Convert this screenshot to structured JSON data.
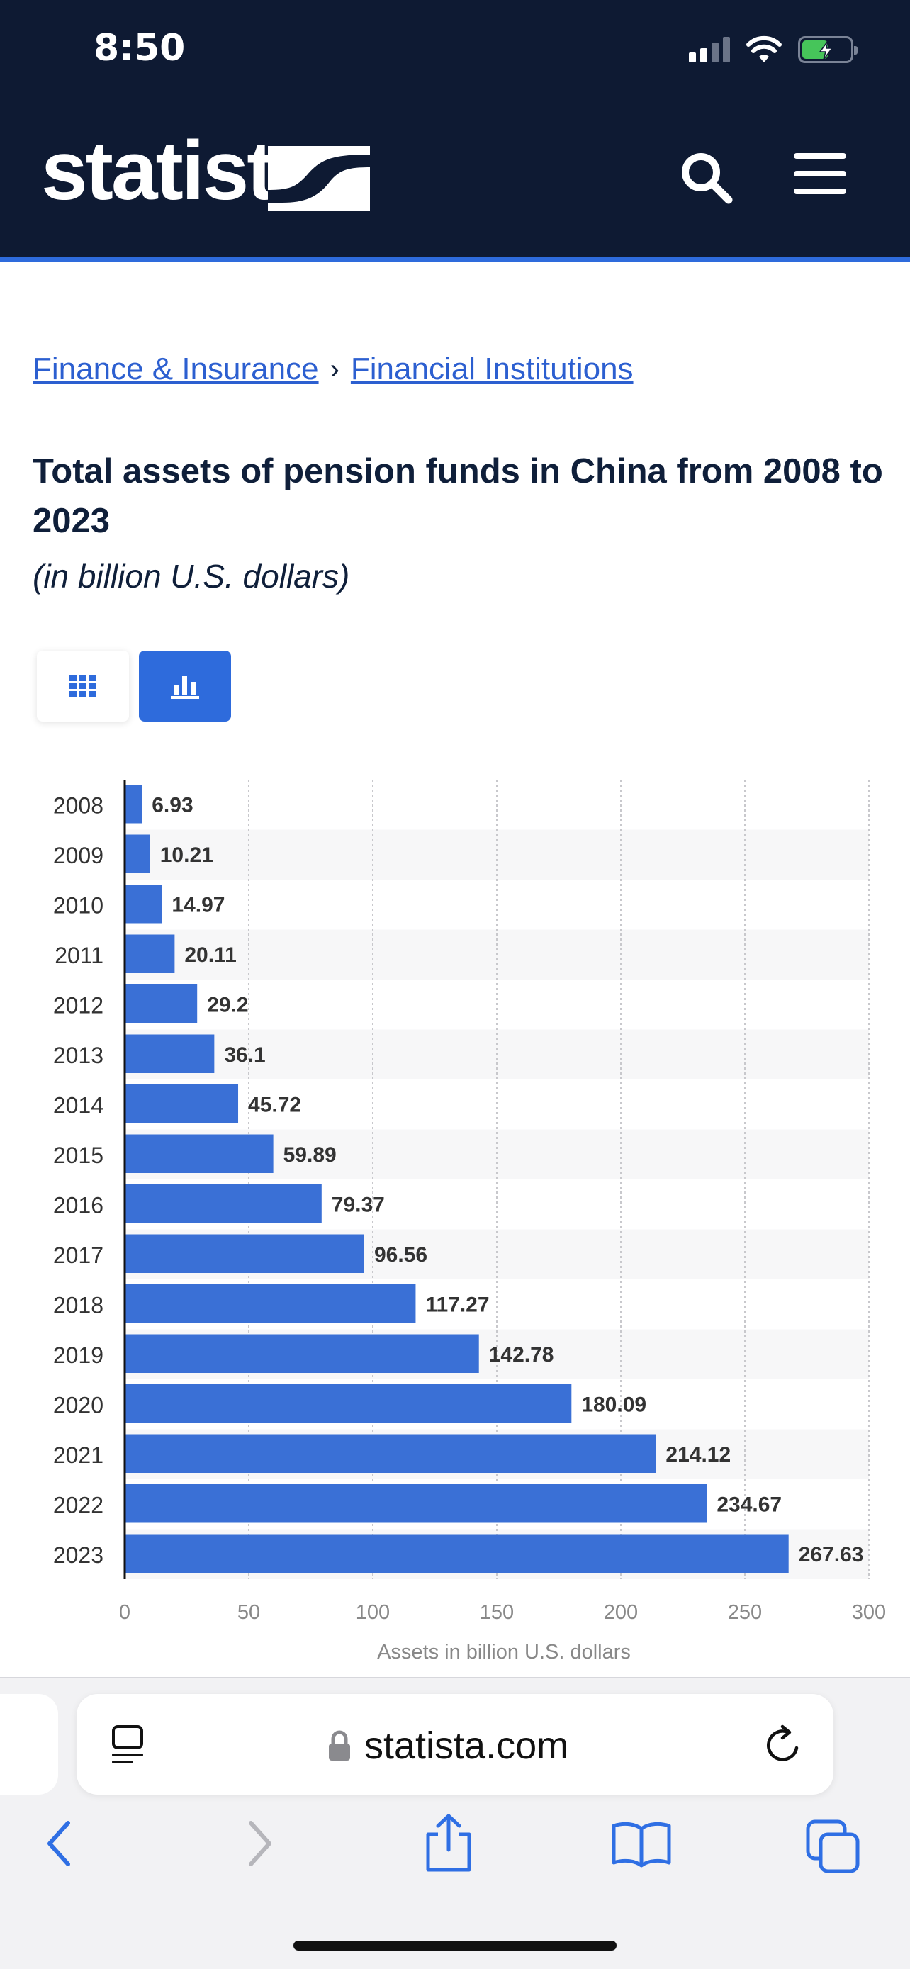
{
  "status_bar": {
    "time": "8:50"
  },
  "header": {
    "logo_text": "statista",
    "search_icon": "search-icon",
    "menu_icon": "hamburger-menu-icon",
    "accent_color": "#2e6bdc",
    "background_color": "#0e1a33"
  },
  "breadcrumb": {
    "items": [
      {
        "label": "Finance & Insurance"
      },
      {
        "label": "Financial Institutions"
      }
    ],
    "separator": "›"
  },
  "statistic": {
    "title": "Total assets of pension funds in China from 2008 to 2023",
    "subtitle": "(in billion U.S. dollars)"
  },
  "view_toggle": {
    "options": [
      "table-view-icon",
      "chart-view-icon"
    ],
    "selected": "chart-view-icon"
  },
  "chart_data": {
    "type": "bar",
    "orientation": "horizontal",
    "categories": [
      "2008",
      "2009",
      "2010",
      "2011",
      "2012",
      "2013",
      "2014",
      "2015",
      "2016",
      "2017",
      "2018",
      "2019",
      "2020",
      "2021",
      "2022",
      "2023"
    ],
    "values": [
      6.93,
      10.21,
      14.97,
      20.11,
      29.2,
      36.1,
      45.72,
      59.89,
      79.37,
      96.56,
      117.27,
      142.78,
      180.09,
      214.12,
      234.67,
      267.63
    ],
    "value_labels": [
      "6.93",
      "10.21",
      "14.97",
      "20.11",
      "29.2",
      "36.1",
      "45.72",
      "59.89",
      "79.37",
      "96.56",
      "117.27",
      "142.78",
      "180.09",
      "214.12",
      "234.67",
      "267.63"
    ],
    "xlabel": "Assets in billion U.S. dollars",
    "ylabel": "",
    "xlim": [
      0,
      300
    ],
    "x_ticks": [
      "0",
      "50",
      "100",
      "150",
      "200",
      "250",
      "300"
    ],
    "bar_color": "#3a70d6",
    "grid": true,
    "legend": "none"
  },
  "browser": {
    "url": "statista.com",
    "icons": [
      "reader-icon",
      "lock-icon",
      "reload-icon",
      "back-icon",
      "forward-icon",
      "share-icon",
      "bookmarks-icon",
      "tabs-icon"
    ]
  }
}
